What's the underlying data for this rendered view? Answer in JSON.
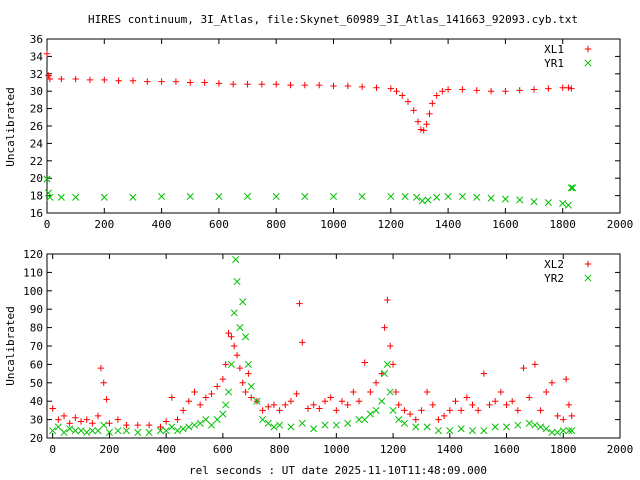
{
  "title": "HIRES continuum, 3I_Atlas, file:Skynet_60989_3I_Atlas_141663_92093.cyb.txt",
  "xlabel": "rel seconds : UT date 2025-11-10T11:48:09.000",
  "colors": {
    "red": "#ff0000",
    "green": "#00c000",
    "axis": "#000000"
  },
  "chart_data": [
    {
      "type": "scatter",
      "ylabel": "Uncalibrated",
      "xlim": [
        0,
        2000
      ],
      "ylim": [
        16,
        36
      ],
      "xticks": [
        0,
        200,
        400,
        600,
        800,
        1000,
        1200,
        1400,
        1600,
        1800,
        2000
      ],
      "yticks": [
        16,
        18,
        20,
        22,
        24,
        26,
        28,
        30,
        32,
        34,
        36
      ],
      "legend_position": "top-right",
      "series": [
        {
          "name": "XL1",
          "marker": "plus",
          "color": "#ff0000",
          "x": [
            0,
            5,
            10,
            50,
            100,
            150,
            200,
            250,
            300,
            350,
            400,
            450,
            500,
            550,
            600,
            650,
            700,
            750,
            800,
            850,
            900,
            950,
            1000,
            1050,
            1100,
            1150,
            1200,
            1220,
            1240,
            1260,
            1280,
            1295,
            1305,
            1315,
            1325,
            1335,
            1345,
            1360,
            1380,
            1400,
            1450,
            1500,
            1550,
            1600,
            1650,
            1700,
            1750,
            1800,
            1820,
            1830
          ],
          "y": [
            34.3,
            31.8,
            31.4,
            31.4,
            31.4,
            31.3,
            31.3,
            31.2,
            31.2,
            31.1,
            31.1,
            31.1,
            31.0,
            31.0,
            30.9,
            30.8,
            30.8,
            30.8,
            30.8,
            30.7,
            30.7,
            30.7,
            30.6,
            30.6,
            30.5,
            30.4,
            30.3,
            30.0,
            29.5,
            28.8,
            27.8,
            26.5,
            25.6,
            25.5,
            26.2,
            27.4,
            28.6,
            29.5,
            30.0,
            30.2,
            30.2,
            30.1,
            30.0,
            30.0,
            30.1,
            30.2,
            30.3,
            30.4,
            30.4,
            30.3
          ]
        },
        {
          "name": "YR1",
          "marker": "cross",
          "color": "#00c000",
          "x": [
            0,
            5,
            10,
            50,
            100,
            200,
            300,
            400,
            500,
            600,
            700,
            800,
            900,
            1000,
            1100,
            1200,
            1250,
            1290,
            1310,
            1330,
            1360,
            1400,
            1450,
            1500,
            1550,
            1600,
            1650,
            1700,
            1750,
            1800,
            1820,
            1830,
            1835
          ],
          "y": [
            19.9,
            18.3,
            17.8,
            17.8,
            17.8,
            17.8,
            17.8,
            17.9,
            17.9,
            17.9,
            17.9,
            17.9,
            17.9,
            17.9,
            17.9,
            17.9,
            17.9,
            17.8,
            17.4,
            17.5,
            17.8,
            17.9,
            17.9,
            17.8,
            17.7,
            17.6,
            17.5,
            17.3,
            17.2,
            17.1,
            16.9,
            18.9,
            18.9
          ]
        }
      ]
    },
    {
      "type": "scatter",
      "ylabel": "Uncalibrated",
      "xlim": [
        -20,
        2000
      ],
      "ylim": [
        20,
        120
      ],
      "xticks": [
        0,
        200,
        400,
        600,
        800,
        1000,
        1200,
        1400,
        1600,
        1800,
        2000
      ],
      "yticks": [
        20,
        30,
        40,
        50,
        60,
        70,
        80,
        90,
        100,
        110,
        120
      ],
      "legend_position": "top-right",
      "series": [
        {
          "name": "XL2",
          "marker": "plus",
          "color": "#ff0000",
          "x": [
            0,
            20,
            40,
            60,
            80,
            100,
            120,
            140,
            160,
            170,
            180,
            190,
            200,
            230,
            260,
            300,
            340,
            380,
            400,
            420,
            440,
            460,
            480,
            500,
            520,
            540,
            560,
            580,
            600,
            610,
            620,
            630,
            640,
            650,
            660,
            670,
            680,
            690,
            700,
            720,
            740,
            760,
            780,
            800,
            820,
            840,
            860,
            870,
            880,
            900,
            920,
            940,
            960,
            980,
            1000,
            1020,
            1040,
            1060,
            1080,
            1100,
            1120,
            1140,
            1160,
            1170,
            1180,
            1190,
            1200,
            1210,
            1220,
            1240,
            1260,
            1280,
            1300,
            1320,
            1340,
            1360,
            1380,
            1400,
            1420,
            1440,
            1460,
            1480,
            1500,
            1520,
            1540,
            1560,
            1580,
            1600,
            1620,
            1640,
            1660,
            1680,
            1700,
            1720,
            1740,
            1760,
            1780,
            1800,
            1810,
            1820,
            1830
          ],
          "y": [
            36,
            30,
            32,
            28,
            31,
            29,
            30,
            28,
            32,
            58,
            50,
            41,
            28,
            30,
            27,
            27,
            27,
            26,
            29,
            42,
            30,
            35,
            40,
            45,
            38,
            42,
            44,
            48,
            52,
            60,
            77,
            75,
            70,
            65,
            58,
            50,
            45,
            55,
            42,
            40,
            35,
            37,
            38,
            35,
            38,
            40,
            44,
            93,
            72,
            36,
            38,
            36,
            40,
            42,
            35,
            40,
            38,
            45,
            40,
            61,
            45,
            50,
            55,
            80,
            95,
            70,
            60,
            45,
            38,
            35,
            33,
            30,
            35,
            45,
            38,
            30,
            32,
            35,
            40,
            35,
            42,
            38,
            35,
            55,
            38,
            40,
            45,
            38,
            40,
            35,
            58,
            42,
            60,
            35,
            45,
            50,
            32,
            30,
            52,
            38,
            32
          ]
        },
        {
          "name": "YR2",
          "marker": "cross",
          "color": "#00c000",
          "x": [
            0,
            20,
            40,
            60,
            80,
            100,
            120,
            140,
            160,
            180,
            200,
            230,
            260,
            300,
            340,
            380,
            400,
            420,
            440,
            460,
            480,
            500,
            520,
            540,
            560,
            580,
            600,
            610,
            620,
            630,
            640,
            645,
            650,
            660,
            670,
            680,
            690,
            700,
            720,
            740,
            760,
            780,
            800,
            840,
            880,
            920,
            960,
            1000,
            1040,
            1080,
            1100,
            1120,
            1140,
            1160,
            1170,
            1180,
            1190,
            1200,
            1220,
            1240,
            1280,
            1320,
            1360,
            1400,
            1440,
            1480,
            1520,
            1560,
            1600,
            1640,
            1680,
            1700,
            1720,
            1740,
            1760,
            1780,
            1800,
            1820,
            1830
          ],
          "y": [
            24,
            26,
            23,
            25,
            24,
            24,
            23,
            24,
            24,
            27,
            23,
            24,
            24,
            23,
            23,
            24,
            24,
            26,
            24,
            25,
            26,
            27,
            28,
            30,
            27,
            30,
            33,
            38,
            45,
            60,
            88,
            117,
            105,
            80,
            94,
            75,
            60,
            48,
            40,
            30,
            28,
            26,
            27,
            26,
            28,
            25,
            27,
            27,
            28,
            30,
            30,
            33,
            35,
            40,
            55,
            60,
            45,
            35,
            30,
            28,
            26,
            26,
            24,
            24,
            25,
            24,
            24,
            26,
            26,
            27,
            28,
            27,
            26,
            25,
            23,
            23,
            24,
            24,
            24
          ]
        }
      ]
    }
  ]
}
